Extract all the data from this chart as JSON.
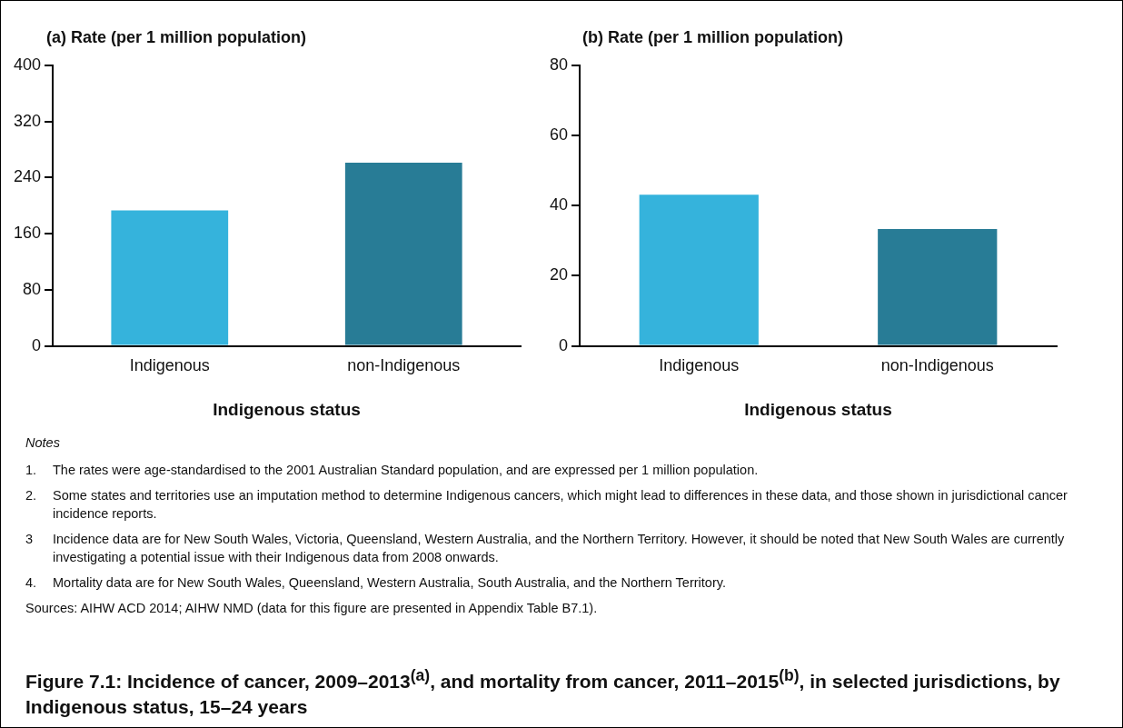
{
  "chart_data": [
    {
      "type": "bar",
      "title": "Figure 7.1: Incidence of cancer, 2009–2013$^{(a)}$, and mortality from cancer, 2011–2015$^{(b)}$, in selected jurisdictions, by Indigenous status, 15–24 years",
      "ylabel": "(a) Rate (per 1 million population)",
      "xlabel": "Indigenous status",
      "categories": [
        "Indigenous",
        "non-Indigenous"
      ],
      "values": [
        193,
        261
      ],
      "colors": [
        "#35b3dc",
        "#287c96"
      ],
      "ylim": [
        0,
        400
      ],
      "yticks": [
        0,
        80,
        160,
        240,
        320,
        400
      ],
      "grid": false,
      "annotations": [
        "Notes",
        "1.\tThe rates were age-standardised to the 2001 Australian Standard population, and are expressed per 1 million population.",
        "2.\tSome states and territories use an imputation method to determine Indigenous cancers, which might lead to differences in these data, and those shown in jurisdictional cancer incidence reports.",
        "3\tIncidence data are for New South Wales, Victoria, Queensland, Western Australia, and the Northern Territory. However, it should be noted that New South Wales are currently investigating a potential issue with their Indigenous data from 2008 onwards.",
        "4.\tMortality data are for New South Wales, Queensland, Western Australia, South Australia, and the Northern Territory.",
        "Sources: AIHW ACD 2014; AIHW NMD (data for this figure are presented in Appendix Table B7.1)."
      ]
    },
    {
      "type": "bar",
      "ylabel": "(b) Rate (per 1 million population)",
      "xlabel": "Indigenous status",
      "categories": [
        "Indigenous",
        "non-Indigenous"
      ],
      "values": [
        43.1,
        33.3
      ],
      "colors": [
        "#35b3dc",
        "#287c96"
      ],
      "ylim": [
        0,
        80
      ],
      "yticks": [
        0,
        20,
        40,
        60,
        80
      ],
      "grid": false
    }
  ]
}
